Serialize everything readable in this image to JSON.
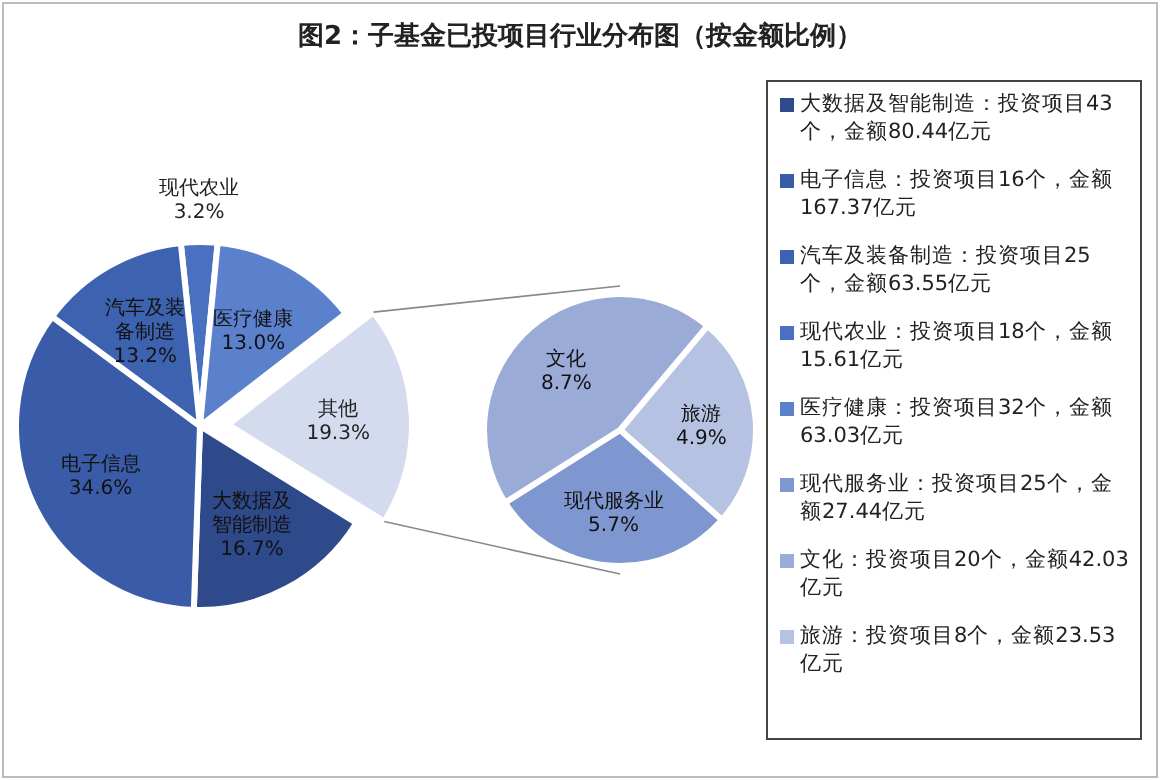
{
  "chart_data": [
    {
      "type": "pie",
      "title": "图2：子基金已投项目行业分布图（按金额比例）",
      "categories": [
        "现代农业",
        "医疗健康",
        "其他",
        "大数据及智能制造",
        "电子信息",
        "汽车及装备制造"
      ],
      "values": [
        3.2,
        13.0,
        19.3,
        16.7,
        34.6,
        13.2
      ],
      "value_labels": [
        "3.2%",
        "13.0%",
        "19.3%",
        "16.7%",
        "34.6%",
        "13.2%"
      ],
      "colors": [
        "#4a70c0",
        "#5b80cc",
        "#d5dbee",
        "#2e4a8a",
        "#3a5ca8",
        "#3d62b0"
      ]
    },
    {
      "type": "pie",
      "categories": [
        "旅游",
        "现代服务业",
        "文化"
      ],
      "values": [
        4.9,
        5.7,
        8.7
      ],
      "value_labels": [
        "4.9%",
        "5.7%",
        "8.7%"
      ],
      "colors": [
        "#b6c2e2",
        "#7f97d0",
        "#9aabd8"
      ]
    },
    {
      "type": "other",
      "annotations": [
        "大数据及智能制造：投资项目43个，金额80.44亿元",
        "电子信息：投资项目16个，金额167.37亿元",
        "汽车及装备制造：投资项目25个，金额63.55亿元",
        "现代农业：投资项目18个，金额15.61亿元",
        "医疗健康：投资项目32个，金额63.03亿元",
        "现代服务业：投资项目25个，金额27.44亿元",
        "文化：投资项目20个，金额42.03亿元",
        "旅游：投资项目8个，金额23.53亿元"
      ],
      "colors": [
        "#2e4a8a",
        "#3a5ca8",
        "#3d62b0",
        "#4a70c0",
        "#5b80cc",
        "#7f97d0",
        "#9aabd8",
        "#b6c2e2"
      ]
    }
  ]
}
